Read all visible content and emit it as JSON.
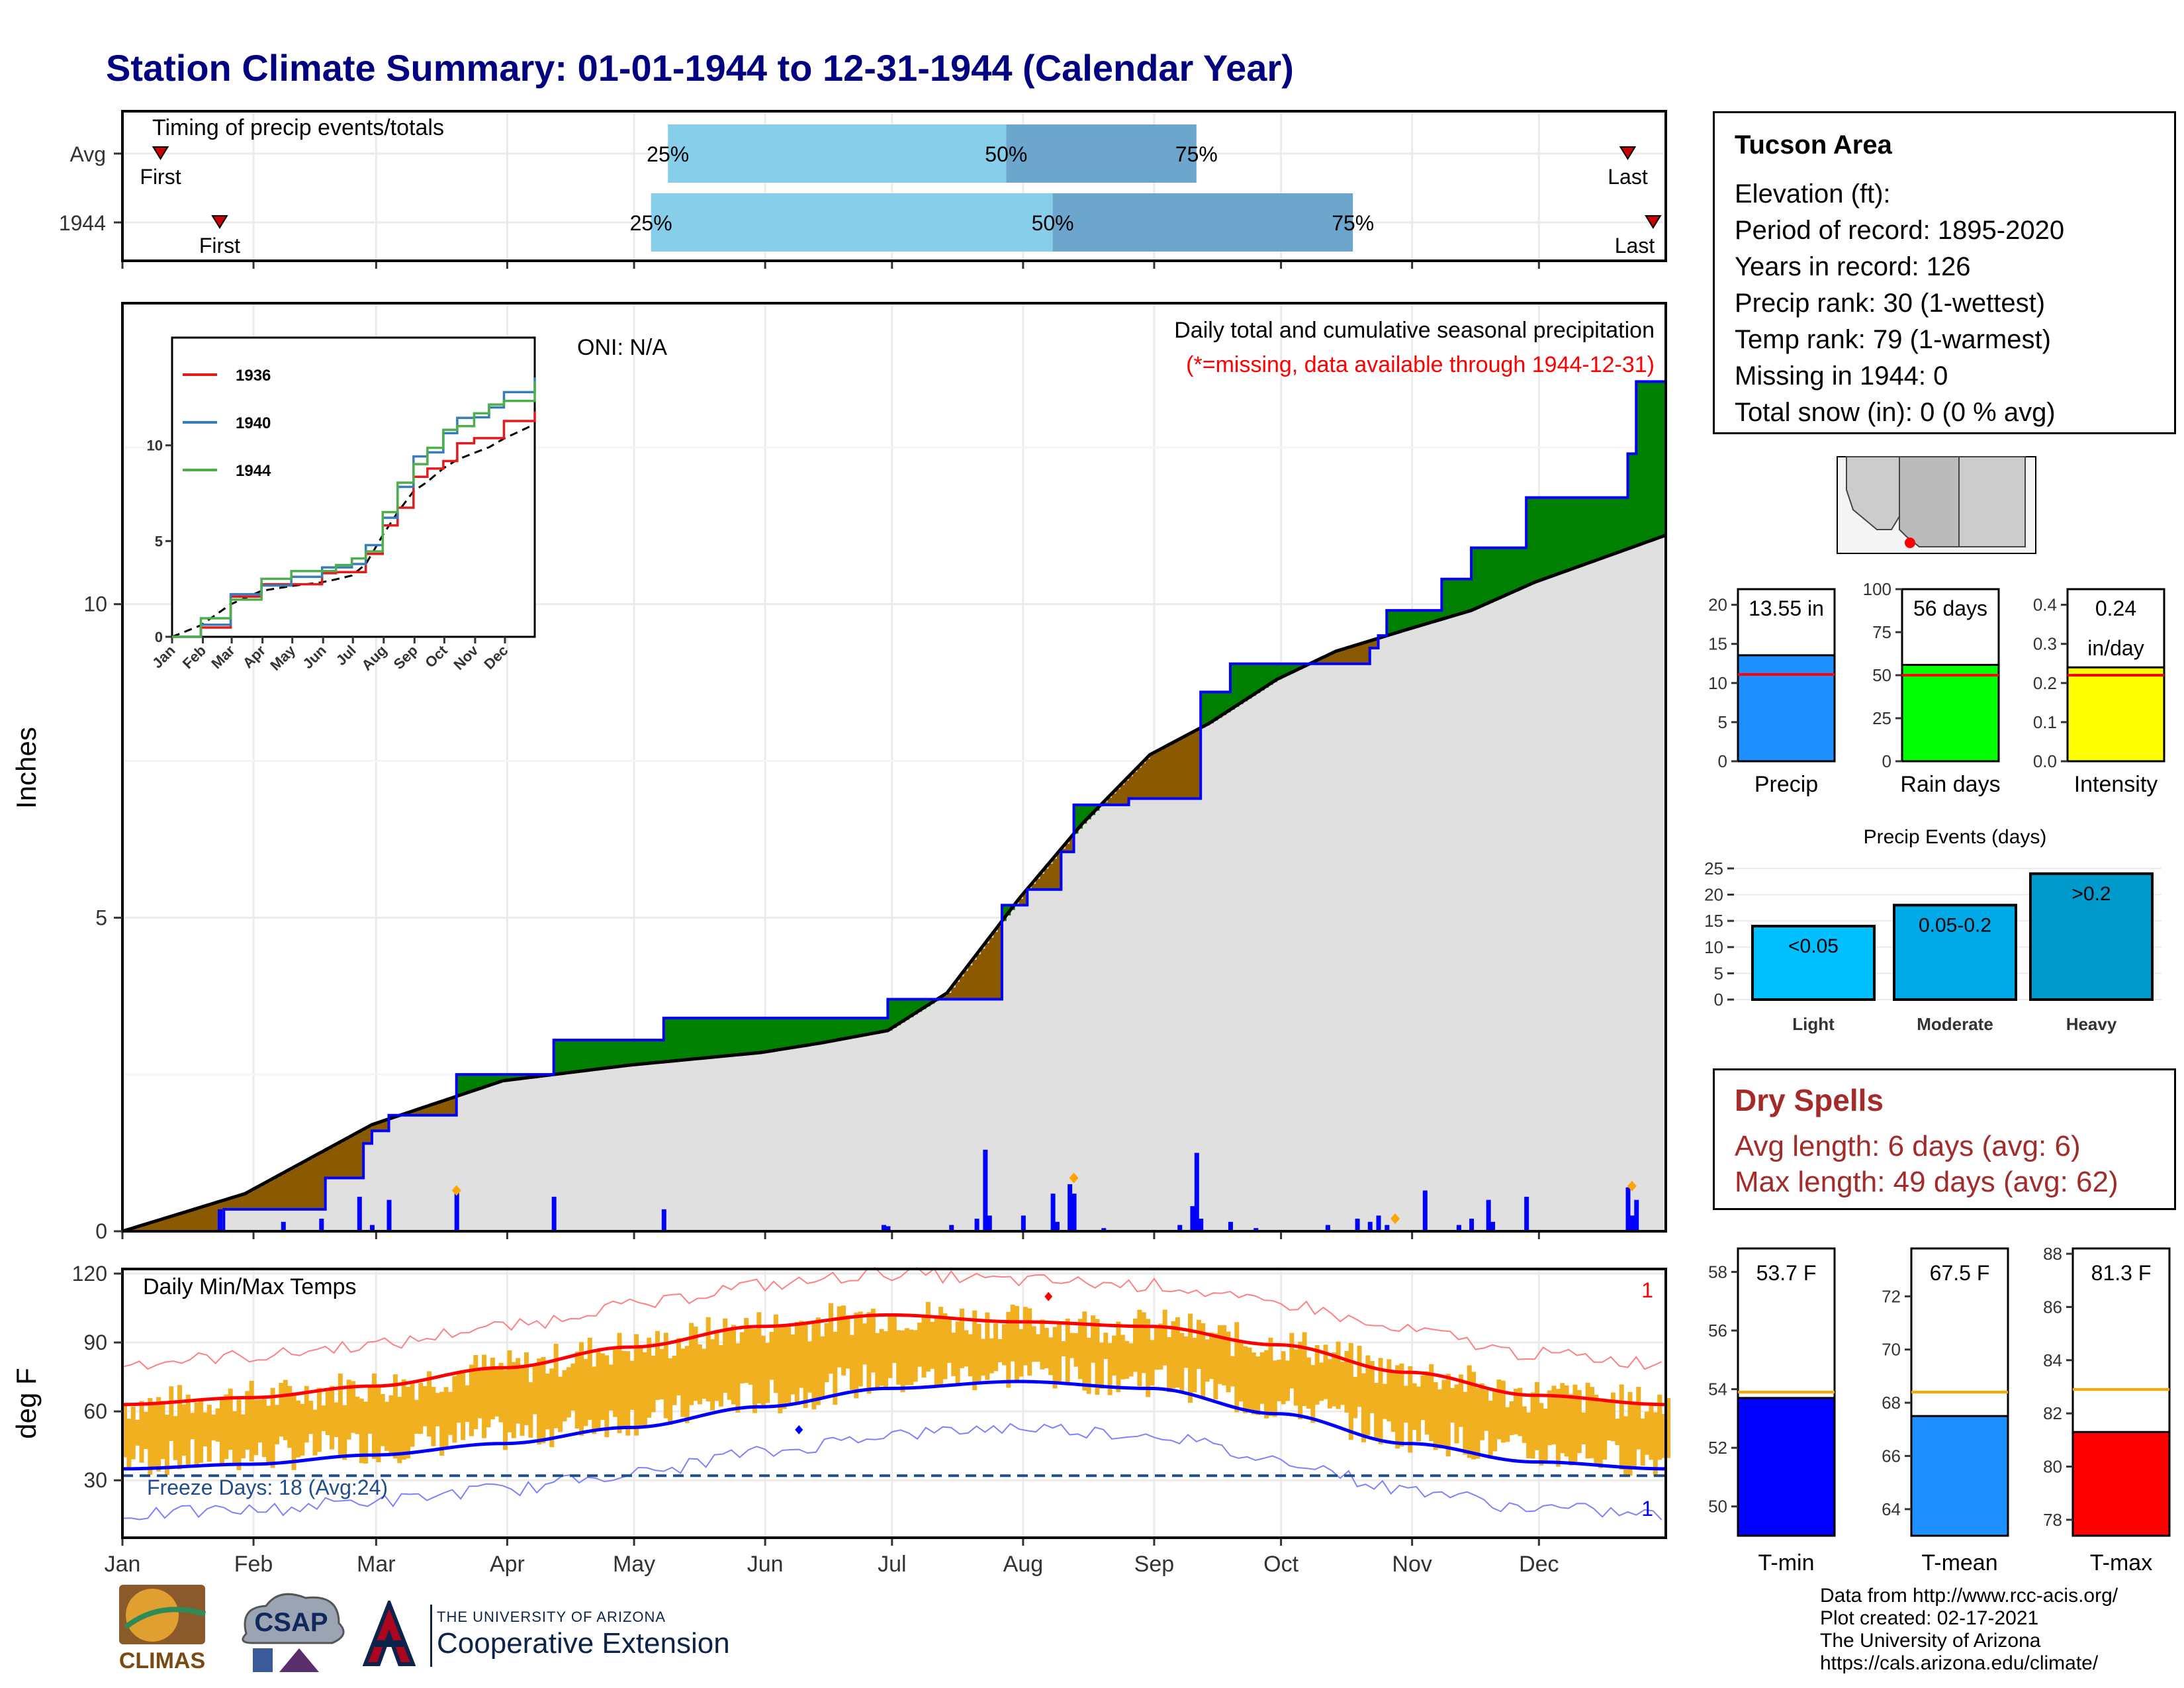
{
  "title": "Station Climate Summary: 01-01-1944 to 12-31-1944 (Calendar Year)",
  "timing": {
    "label": "Timing of precip events/totals",
    "rows": [
      {
        "name": "Avg",
        "first_day": 10,
        "last_day": 357,
        "q25": 130,
        "q50": 210,
        "q75": 255,
        "first_label": "First",
        "last_label": "Last",
        "p25": "25%",
        "p50": "50%",
        "p75": "75%"
      },
      {
        "name": "1944",
        "first_day": 24,
        "last_day": 363,
        "q25": 126,
        "q50": 221,
        "q75": 292,
        "first_label": "First",
        "last_label": "Last",
        "p25": "25%",
        "p50": "50%",
        "p75": "75%"
      }
    ]
  },
  "main": {
    "caption": "Daily total and cumulative seasonal precipitation",
    "missing_note": "(*=missing, data available through 1944-12-31)",
    "oni": "ONI: N/A",
    "ylabel": "Inches",
    "y_ticks": [
      "0",
      "5",
      "10"
    ],
    "ylim": [
      0,
      14.8
    ]
  },
  "inset": {
    "y_ticks": [
      "0",
      "5",
      "10"
    ],
    "x_ticks": [
      "Jan",
      "Feb",
      "Mar",
      "Apr",
      "May",
      "Jun",
      "Jul",
      "Aug",
      "Sep",
      "Oct",
      "Nov",
      "Dec"
    ],
    "legend": [
      "1936",
      "1940",
      "1944"
    ],
    "colors": [
      "#e41a1c",
      "#377eb8",
      "#4daf4a"
    ]
  },
  "temps": {
    "label": "Daily Min/Max Temps",
    "ylabel": "deg F",
    "y_ticks": [
      "30",
      "60",
      "90",
      "120"
    ],
    "ylim": [
      5,
      122
    ],
    "freeze": "Freeze Days: 18 (Avg:24)",
    "record_high_count": "1",
    "record_low_count": "1"
  },
  "months": [
    "Jan",
    "Feb",
    "Mar",
    "Apr",
    "May",
    "Jun",
    "Jul",
    "Aug",
    "Sep",
    "Oct",
    "Nov",
    "Dec"
  ],
  "station": {
    "name": "Tucson Area",
    "lines": [
      "Elevation (ft):",
      "Period of record: 1895-2020",
      "Years in record: 126",
      "Precip rank: 30 (1-wettest)",
      "Temp rank: 79 (1-warmest)",
      "Missing in 1944: 0",
      "Total snow (in): 0 (0 % avg)"
    ]
  },
  "summary_bars": [
    {
      "name": "Precip",
      "value_label": "13.55 in",
      "value": 13.55,
      "avg": 11.1,
      "ymax": 22,
      "ticks": [
        "0",
        "5",
        "10",
        "15",
        "20"
      ],
      "tick_values": [
        0,
        5,
        10,
        15,
        20
      ],
      "color": "#1e90ff"
    },
    {
      "name": "Rain days",
      "value_label": "56 days",
      "value": 56,
      "avg": 50,
      "ymax": 100,
      "ticks": [
        "0",
        "25",
        "50",
        "75",
        "100"
      ],
      "tick_values": [
        0,
        25,
        50,
        75,
        100
      ],
      "color": "#00ff00"
    },
    {
      "name": "Intensity",
      "value_label": "0.24",
      "value_label2": "in/day",
      "value": 0.24,
      "avg": 0.22,
      "ymax": 0.44,
      "ticks": [
        "0.0",
        "0.1",
        "0.2",
        "0.3",
        "0.4"
      ],
      "tick_values": [
        0,
        0.1,
        0.2,
        0.3,
        0.4
      ],
      "color": "#ffff00"
    }
  ],
  "events": {
    "title": "Precip Events (days)",
    "ticks": [
      "0",
      "5",
      "10",
      "15",
      "20",
      "25"
    ],
    "bars": [
      {
        "name": "Light",
        "label": "<0.05",
        "value": 14,
        "color": "#00bfff"
      },
      {
        "name": "Moderate",
        "label": "0.05-0.2",
        "value": 18,
        "color": "#00aae8"
      },
      {
        "name": "Heavy",
        "label": ">0.2",
        "value": 24,
        "color": "#0099cc"
      }
    ]
  },
  "dry_spells": {
    "title": "Dry Spells",
    "avg": "Avg length: 6 days (avg: 6)",
    "max": "Max length: 49 days (avg: 62)"
  },
  "temp_bars": [
    {
      "name": "T-min",
      "value_label": "53.7 F",
      "value": 53.7,
      "avg": 53.9,
      "ymin": 49,
      "ymax": 58.8,
      "ticks": [
        "50",
        "52",
        "54",
        "56",
        "58"
      ],
      "tick_values": [
        50,
        52,
        54,
        56,
        58
      ],
      "color": "#0000ff"
    },
    {
      "name": "T-mean",
      "value_label": "67.5 F",
      "value": 67.5,
      "avg": 68.4,
      "ymin": 63,
      "ymax": 73.8,
      "ticks": [
        "64",
        "66",
        "68",
        "70",
        "72"
      ],
      "tick_values": [
        64,
        66,
        68,
        70,
        72
      ],
      "color": "#1e90ff"
    },
    {
      "name": "T-max",
      "value_label": "81.3 F",
      "value": 81.3,
      "avg": 82.9,
      "ymin": 77.4,
      "ymax": 88.2,
      "ticks": [
        "78",
        "80",
        "82",
        "84",
        "86",
        "88"
      ],
      "tick_values": [
        78,
        80,
        82,
        84,
        86,
        88
      ],
      "color": "#ff0000"
    }
  ],
  "credits": [
    "Data from http://www.rcc-acis.org/",
    "Plot created: 02-17-2021",
    "The University of Arizona",
    "https://cals.arizona.edu/climate/"
  ],
  "logos": {
    "climas": "CLIMAS",
    "csap": "CSAP",
    "ua_small": "THE UNIVERSITY OF ARIZONA",
    "ua_big": "Cooperative Extension"
  },
  "chart_data": {
    "type": "line",
    "title": "Station Climate Summary: 01-01-1944 to 12-31-1944 (Calendar Year)",
    "ylabel": "Inches",
    "xlabel": "",
    "precip_total_in": 13.55,
    "cumulative_1944_steps": [
      {
        "day": 1,
        "value": 0.0
      },
      {
        "day": 25,
        "value": 0.35
      },
      {
        "day": 49,
        "value": 0.85
      },
      {
        "day": 58,
        "value": 1.4
      },
      {
        "day": 60,
        "value": 1.6
      },
      {
        "day": 64,
        "value": 1.85
      },
      {
        "day": 80,
        "value": 2.5
      },
      {
        "day": 103,
        "value": 3.05
      },
      {
        "day": 129,
        "value": 3.4
      },
      {
        "day": 182,
        "value": 3.7
      },
      {
        "day": 209,
        "value": 5.2
      },
      {
        "day": 215,
        "value": 5.45
      },
      {
        "day": 223,
        "value": 6.05
      },
      {
        "day": 226,
        "value": 6.8
      },
      {
        "day": 239,
        "value": 6.9
      },
      {
        "day": 256,
        "value": 8.6
      },
      {
        "day": 263,
        "value": 9.05
      },
      {
        "day": 296,
        "value": 9.3
      },
      {
        "day": 298,
        "value": 9.5
      },
      {
        "day": 300,
        "value": 9.9
      },
      {
        "day": 313,
        "value": 10.4
      },
      {
        "day": 320,
        "value": 10.9
      },
      {
        "day": 333,
        "value": 11.7
      },
      {
        "day": 357,
        "value": 12.4
      },
      {
        "day": 359,
        "value": 13.55
      }
    ],
    "cumulative_avg_points": [
      {
        "day": 1,
        "value": 0.0
      },
      {
        "day": 30,
        "value": 0.6
      },
      {
        "day": 60,
        "value": 1.7
      },
      {
        "day": 91,
        "value": 2.4
      },
      {
        "day": 121,
        "value": 2.65
      },
      {
        "day": 152,
        "value": 2.85
      },
      {
        "day": 166,
        "value": 3.0
      },
      {
        "day": 182,
        "value": 3.2
      },
      {
        "day": 196,
        "value": 3.8
      },
      {
        "day": 213,
        "value": 5.3
      },
      {
        "day": 228,
        "value": 6.5
      },
      {
        "day": 244,
        "value": 7.6
      },
      {
        "day": 258,
        "value": 8.1
      },
      {
        "day": 274,
        "value": 8.8
      },
      {
        "day": 288,
        "value": 9.25
      },
      {
        "day": 305,
        "value": 9.6
      },
      {
        "day": 320,
        "value": 9.9
      },
      {
        "day": 335,
        "value": 10.35
      },
      {
        "day": 366,
        "value": 11.1
      }
    ],
    "daily_precip": [
      {
        "day": 24,
        "value": 0.35
      },
      {
        "day": 39,
        "value": 0.15
      },
      {
        "day": 48,
        "value": 0.2
      },
      {
        "day": 57,
        "value": 0.55
      },
      {
        "day": 60,
        "value": 0.1
      },
      {
        "day": 64,
        "value": 0.5
      },
      {
        "day": 80,
        "value": 0.65
      },
      {
        "day": 103,
        "value": 0.55
      },
      {
        "day": 129,
        "value": 0.35
      },
      {
        "day": 181,
        "value": 0.1
      },
      {
        "day": 182,
        "value": 0.08
      },
      {
        "day": 197,
        "value": 0.1
      },
      {
        "day": 203,
        "value": 0.2
      },
      {
        "day": 205,
        "value": 1.3
      },
      {
        "day": 206,
        "value": 0.25
      },
      {
        "day": 214,
        "value": 0.25
      },
      {
        "day": 221,
        "value": 0.6
      },
      {
        "day": 222,
        "value": 0.15
      },
      {
        "day": 225,
        "value": 0.75
      },
      {
        "day": 226,
        "value": 0.6
      },
      {
        "day": 233,
        "value": 0.05
      },
      {
        "day": 251,
        "value": 0.1
      },
      {
        "day": 254,
        "value": 0.4
      },
      {
        "day": 255,
        "value": 1.25
      },
      {
        "day": 256,
        "value": 0.2
      },
      {
        "day": 263,
        "value": 0.15
      },
      {
        "day": 269,
        "value": 0.05
      },
      {
        "day": 286,
        "value": 0.1
      },
      {
        "day": 293,
        "value": 0.2
      },
      {
        "day": 296,
        "value": 0.15
      },
      {
        "day": 298,
        "value": 0.25
      },
      {
        "day": 300,
        "value": 0.1
      },
      {
        "day": 309,
        "value": 0.65
      },
      {
        "day": 317,
        "value": 0.1
      },
      {
        "day": 320,
        "value": 0.2
      },
      {
        "day": 324,
        "value": 0.5
      },
      {
        "day": 325,
        "value": 0.15
      },
      {
        "day": 333,
        "value": 0.55
      },
      {
        "day": 357,
        "value": 0.7
      },
      {
        "day": 358,
        "value": 0.25
      },
      {
        "day": 359,
        "value": 0.5
      }
    ],
    "temp_smoothed_max": [
      {
        "day": 1,
        "value": 63
      },
      {
        "day": 31,
        "value": 66
      },
      {
        "day": 60,
        "value": 71
      },
      {
        "day": 91,
        "value": 79
      },
      {
        "day": 121,
        "value": 88
      },
      {
        "day": 152,
        "value": 97
      },
      {
        "day": 182,
        "value": 102
      },
      {
        "day": 213,
        "value": 99
      },
      {
        "day": 244,
        "value": 97
      },
      {
        "day": 274,
        "value": 89
      },
      {
        "day": 305,
        "value": 77
      },
      {
        "day": 335,
        "value": 67
      },
      {
        "day": 366,
        "value": 63
      }
    ],
    "temp_smoothed_min": [
      {
        "day": 1,
        "value": 35
      },
      {
        "day": 31,
        "value": 37
      },
      {
        "day": 60,
        "value": 41
      },
      {
        "day": 91,
        "value": 46
      },
      {
        "day": 121,
        "value": 53
      },
      {
        "day": 152,
        "value": 62
      },
      {
        "day": 182,
        "value": 70
      },
      {
        "day": 213,
        "value": 73
      },
      {
        "day": 244,
        "value": 70
      },
      {
        "day": 274,
        "value": 59
      },
      {
        "day": 305,
        "value": 46
      },
      {
        "day": 335,
        "value": 38
      },
      {
        "day": 366,
        "value": 35
      }
    ],
    "freeze_line_f": 32
  }
}
